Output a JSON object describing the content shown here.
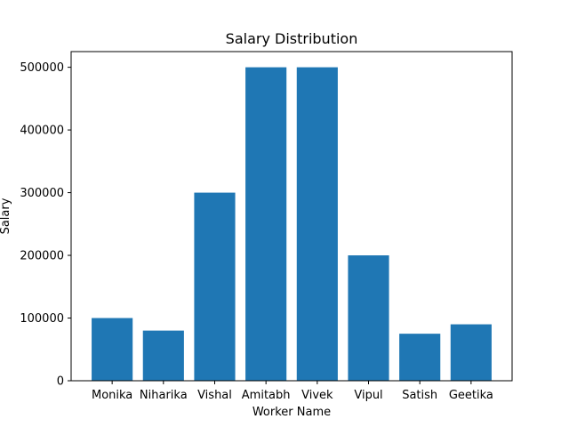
{
  "chart_data": {
    "type": "bar",
    "title": "Salary Distribution",
    "xlabel": "Worker Name",
    "ylabel": "Salary",
    "categories": [
      "Monika",
      "Niharika",
      "Vishal",
      "Amitabh",
      "Vivek",
      "Vipul",
      "Satish",
      "Geetika"
    ],
    "values": [
      100000,
      80000,
      300000,
      500000,
      500000,
      200000,
      75000,
      90000
    ],
    "ylim": [
      0,
      525000
    ],
    "yticks": [
      0,
      100000,
      200000,
      300000,
      400000,
      500000
    ],
    "ytick_labels": [
      "0",
      "100000",
      "200000",
      "300000",
      "400000",
      "500000"
    ],
    "bar_color": "#1f77b4",
    "grid": false
  }
}
